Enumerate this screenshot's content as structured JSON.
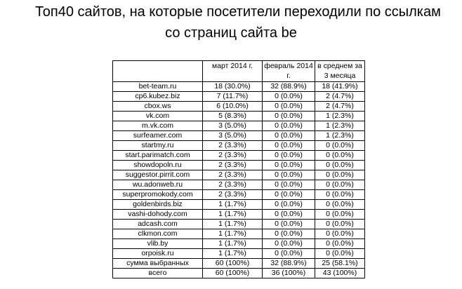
{
  "title_line1": "Топ40 сайтов, на которые посетители переходили по ссылкам",
  "title_line2": "со страниц сайта be",
  "columns": [
    "",
    "март 2014 г.",
    "февраль 2014 г.",
    "в среднем за 3 месяца"
  ],
  "rows": [
    [
      "bet-team.ru",
      "18 (30.0%)",
      "32 (88.9%)",
      "18 (41.9%)"
    ],
    [
      "cp6.kubez.biz",
      "7 (11.7%)",
      "0 (0.0%)",
      "2 (4.7%)"
    ],
    [
      "cbox.ws",
      "6 (10.0%)",
      "0 (0.0%)",
      "2 (4.7%)"
    ],
    [
      "vk.com",
      "5 (8.3%)",
      "0 (0.0%)",
      "1 (2.3%)"
    ],
    [
      "m.vk.com",
      "3 (5.0%)",
      "0 (0.0%)",
      "1 (2.3%)"
    ],
    [
      "surfeamer.com",
      "3 (5.0%)",
      "0 (0.0%)",
      "1 (2.3%)"
    ],
    [
      "startmy.ru",
      "2 (3.3%)",
      "0 (0.0%)",
      "0 (0.0%)"
    ],
    [
      "start.parimatch.com",
      "2 (3.3%)",
      "0 (0.0%)",
      "0 (0.0%)"
    ],
    [
      "showdopoln.ru",
      "2 (3.3%)",
      "0 (0.0%)",
      "0 (0.0%)"
    ],
    [
      "suggestor.pirrit.com",
      "2 (3.3%)",
      "0 (0.0%)",
      "0 (0.0%)"
    ],
    [
      "wu.adonweb.ru",
      "2 (3.3%)",
      "0 (0.0%)",
      "0 (0.0%)"
    ],
    [
      "superpromokody.com",
      "2 (3.3%)",
      "0 (0.0%)",
      "0 (0.0%)"
    ],
    [
      "goldenbirds.biz",
      "1 (1.7%)",
      "0 (0.0%)",
      "0 (0.0%)"
    ],
    [
      "vashi-dohody.com",
      "1 (1.7%)",
      "0 (0.0%)",
      "0 (0.0%)"
    ],
    [
      "adcash.com",
      "1 (1.7%)",
      "0 (0.0%)",
      "0 (0.0%)"
    ],
    [
      "clkmon.com",
      "1 (1.7%)",
      "0 (0.0%)",
      "0 (0.0%)"
    ],
    [
      "vlib.by",
      "1 (1.7%)",
      "0 (0.0%)",
      "0 (0.0%)"
    ],
    [
      "orpoisk.ru",
      "1 (1.7%)",
      "0 (0.0%)",
      "0 (0.0%)"
    ],
    [
      "сумма выбранных",
      "60 (100%)",
      "32 (88.9%)",
      "25 (58.1%)"
    ],
    [
      "всего",
      "60 (100%)",
      "36 (100%)",
      "43 (100%)"
    ]
  ]
}
